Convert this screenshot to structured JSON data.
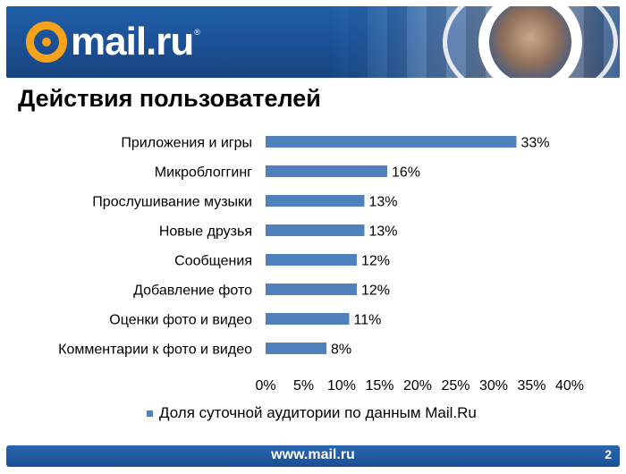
{
  "header": {
    "logo_text": "mail.ru",
    "logo_reg": "®"
  },
  "slide": {
    "title": "Действия пользователей"
  },
  "colors": {
    "brand_blue": "#1b4f94",
    "bar": "#4f81bd",
    "logo_orange": "#f7a21b"
  },
  "chart_data": {
    "type": "bar",
    "orientation": "horizontal",
    "categories": [
      "Приложения и игры",
      "Микроблоггинг",
      "Прослушивание музыки",
      "Новые друзья",
      "Сообщения",
      "Добавление фото",
      "Оценки фото и видео",
      "Комментарии к фото и видео"
    ],
    "values": [
      33,
      16,
      13,
      13,
      12,
      12,
      11,
      8
    ],
    "value_labels": [
      "33%",
      "16%",
      "13%",
      "13%",
      "12%",
      "12%",
      "11%",
      "8%"
    ],
    "xlim": [
      0,
      40
    ],
    "x_ticks": [
      "0%",
      "5%",
      "10%",
      "15%",
      "20%",
      "25%",
      "30%",
      "35%",
      "40%"
    ],
    "series": [
      {
        "name": "Доля суточной аудитории по данным Mail.Ru",
        "values": [
          33,
          16,
          13,
          13,
          12,
          12,
          11,
          8
        ]
      }
    ],
    "legend_position": "bottom",
    "grid": false
  },
  "footer": {
    "url": "www.mail.ru",
    "page_number": "2"
  }
}
